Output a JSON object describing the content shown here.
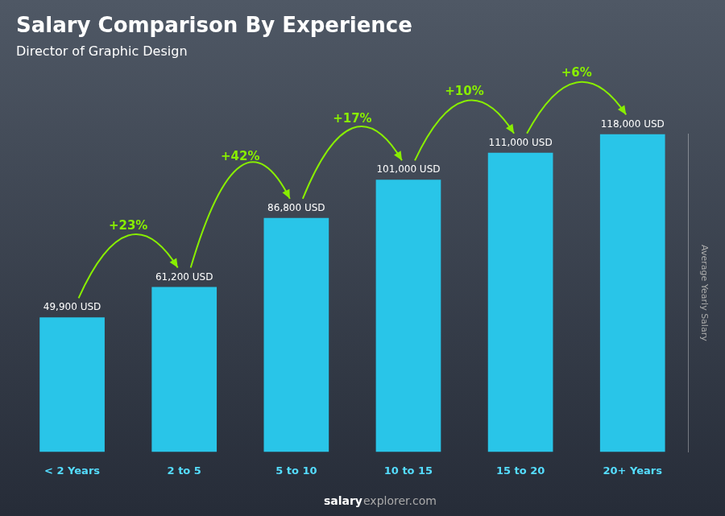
{
  "chart_data": {
    "type": "bar",
    "title": "Salary Comparison By Experience",
    "subtitle": "Director of Graphic Design",
    "y_label": "Average Yearly Salary",
    "footer": [
      "salary",
      "explorer.com"
    ],
    "categories": [
      "< 2 Years",
      "2 to 5",
      "5 to 10",
      "10 to 15",
      "15 to 20",
      "20+ Years"
    ],
    "values": [
      49900,
      61200,
      86800,
      101000,
      111000,
      118000
    ],
    "value_labels": [
      "49,900 USD",
      "61,200 USD",
      "86,800 USD",
      "101,000 USD",
      "111,000 USD",
      "118,000 USD"
    ],
    "data_labels": true,
    "color": "#29c5e8",
    "ylim": [
      0,
      118000
    ],
    "tick_labels": "x",
    "grid": false,
    "annotations": [
      {
        "text": "+23%",
        "from": "< 2 Years",
        "to": "2 to 5",
        "color": "#88ee00"
      },
      {
        "text": "+42%",
        "from": "2 to 5",
        "to": "5 to 10",
        "color": "#88ee00"
      },
      {
        "text": "+17%",
        "from": "5 to 10",
        "to": "10 to 15",
        "color": "#88ee00"
      },
      {
        "text": "+10%",
        "from": "10 to 15",
        "to": "15 to 20",
        "color": "#88ee00"
      },
      {
        "text": "+6%",
        "from": "15 to 20",
        "to": "20+ Years",
        "color": "#88ee00"
      }
    ]
  }
}
